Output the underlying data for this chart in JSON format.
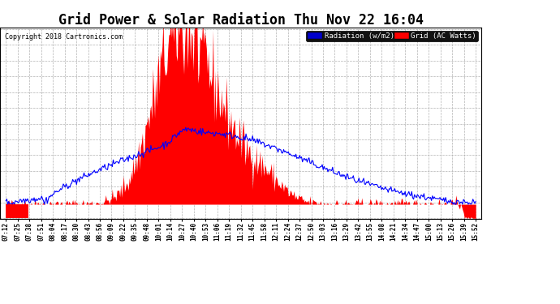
{
  "title": "Grid Power & Solar Radiation Thu Nov 22 16:04",
  "copyright": "Copyright 2018 Cartronics.com",
  "legend_radiation": "Radiation (w/m2)",
  "legend_grid": "Grid (AC Watts)",
  "ymin": -23.5,
  "ymax": 293.9,
  "yticks": [
    293.9,
    267.5,
    241.0,
    214.6,
    188.1,
    161.7,
    135.2,
    108.8,
    82.3,
    55.9,
    29.4,
    3.0,
    -23.5
  ],
  "background_color": "#ffffff",
  "grid_color": "#aaaaaa",
  "fill_color": "#ff0000",
  "line_color": "#0000ff",
  "legend_radiation_bg": "#0000cc",
  "legend_grid_bg": "#ff0000",
  "title_fontsize": 12,
  "tick_fontsize": 7,
  "xtick_labels": [
    "07:12",
    "07:25",
    "07:38",
    "07:51",
    "08:04",
    "08:17",
    "08:30",
    "08:43",
    "08:56",
    "09:09",
    "09:22",
    "09:35",
    "09:48",
    "10:01",
    "10:14",
    "10:27",
    "10:40",
    "10:53",
    "11:06",
    "11:19",
    "11:32",
    "11:45",
    "11:58",
    "12:11",
    "12:24",
    "12:37",
    "12:50",
    "13:03",
    "13:16",
    "13:29",
    "13:42",
    "13:55",
    "14:08",
    "14:21",
    "14:34",
    "14:47",
    "15:00",
    "15:13",
    "15:26",
    "15:39",
    "15:52"
  ],
  "n_dense": 500
}
